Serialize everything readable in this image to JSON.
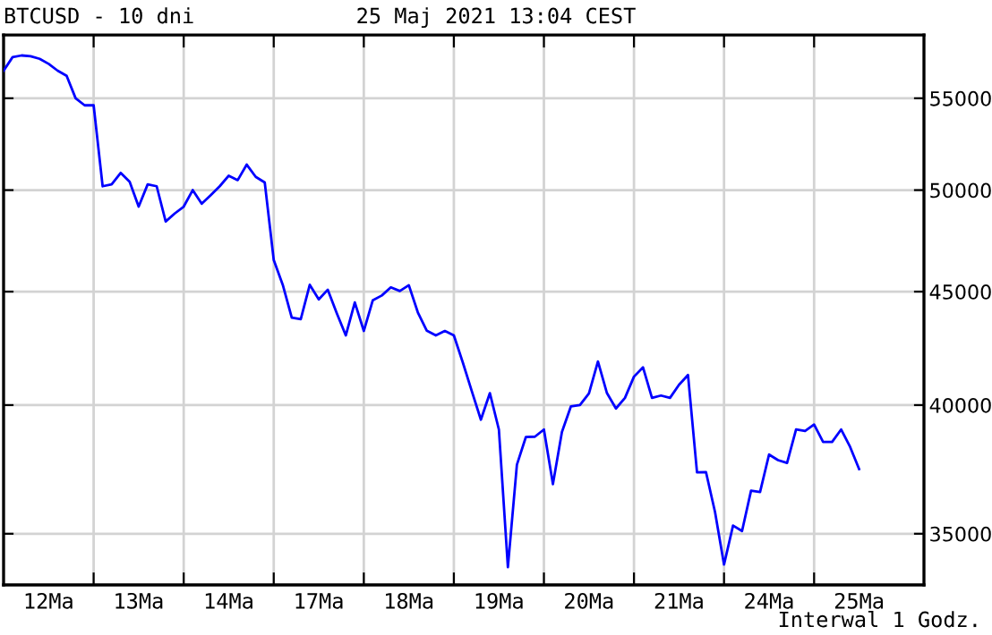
{
  "chart_data": {
    "type": "line",
    "title": "BTCUSD - 10 dni",
    "subtitle": "25 Maj 2021 13:04 CEST",
    "annotations": [
      "Interwal 1 Godz."
    ],
    "log": "y",
    "grid": true,
    "marker": "none",
    "line_style": "solid",
    "ylim": [
      33190,
      58730
    ],
    "yticks": [
      35000,
      40000,
      45000,
      50000,
      55000
    ],
    "categories": [
      null,
      null,
      null,
      null,
      null,
      "12Ma",
      null,
      null,
      null,
      null,
      null,
      null,
      null,
      null,
      null,
      "13Ma",
      null,
      null,
      null,
      null,
      null,
      null,
      null,
      null,
      null,
      "14Ma",
      null,
      null,
      null,
      null,
      null,
      null,
      null,
      null,
      null,
      "17Ma",
      null,
      null,
      null,
      null,
      null,
      null,
      null,
      null,
      null,
      "18Ma",
      null,
      null,
      null,
      null,
      null,
      null,
      null,
      null,
      null,
      "19Ma",
      null,
      null,
      null,
      null,
      null,
      null,
      null,
      null,
      null,
      "20Ma",
      null,
      null,
      null,
      null,
      null,
      null,
      null,
      null,
      null,
      "21Ma",
      null,
      null,
      null,
      null,
      null,
      null,
      null,
      null,
      null,
      "24Ma",
      null,
      null,
      null,
      null,
      null,
      null,
      null,
      null,
      null,
      "25Ma"
    ],
    "series": [
      {
        "color": "#0000ff",
        "values": [
          56600,
          57400,
          57500,
          57450,
          57300,
          57000,
          56600,
          56300,
          55000,
          54600,
          54600,
          50200,
          50300,
          50900,
          50430,
          49150,
          50300,
          50200,
          48400,
          48800,
          49150,
          50000,
          49300,
          49740,
          50200,
          50750,
          50520,
          51340,
          50690,
          50400,
          46500,
          45320,
          43800,
          43730,
          45320,
          44640,
          45090,
          44000,
          43000,
          44500,
          43200,
          44600,
          44820,
          45200,
          45030,
          45300,
          44040,
          43210,
          43000,
          43200,
          43000,
          41800,
          40570,
          39400,
          40500,
          39000,
          33810,
          37600,
          38700,
          38710,
          39000,
          36850,
          38900,
          39950,
          40000,
          40490,
          41850,
          40500,
          39860,
          40300,
          41200,
          41600,
          40300,
          40400,
          40300,
          40850,
          41270,
          37300,
          37310,
          35800,
          33900,
          35300,
          35100,
          36600,
          36550,
          38000,
          37780,
          37670,
          39000,
          38940,
          39200,
          38500,
          38500,
          39000,
          38300,
          37430
        ]
      }
    ]
  }
}
